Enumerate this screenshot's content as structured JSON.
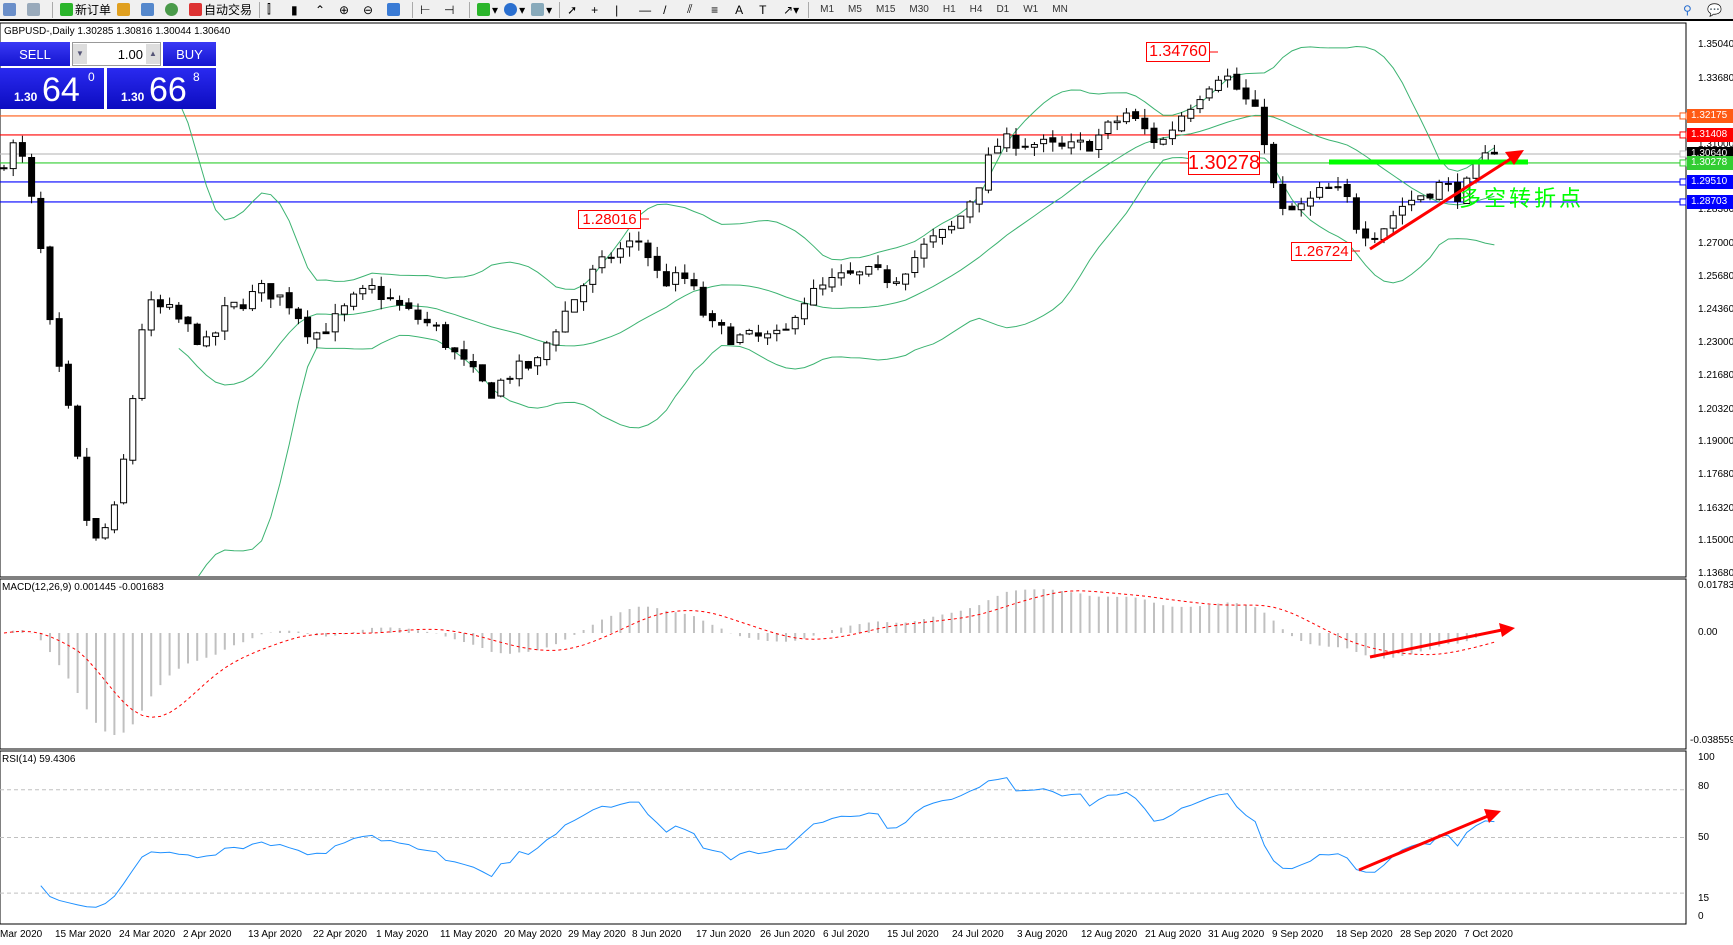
{
  "toolbar": {
    "new_order": "新订单",
    "auto_trading": "自动交易",
    "timeframes": [
      "M1",
      "M5",
      "M15",
      "M30",
      "H1",
      "H4",
      "D1",
      "W1",
      "MN"
    ]
  },
  "chart": {
    "title": "GBPUSD-,Daily  1.30285 1.30816 1.30044 1.30640"
  },
  "trade_panel": {
    "sell": "SELL",
    "buy": "BUY",
    "lots": "1.00",
    "sell_prefix": "1.30",
    "sell_big": "64",
    "sell_sup": "0",
    "buy_prefix": "1.30",
    "buy_big": "66",
    "buy_sup": "8"
  },
  "price_axis": [
    "1.35040",
    "1.33680",
    "1.31000",
    "1.28360",
    "1.27000",
    "1.25680",
    "1.24360",
    "1.23000",
    "1.21680",
    "1.20320",
    "1.19000",
    "1.17680",
    "1.16320",
    "1.15000",
    "1.13680"
  ],
  "hlines": [
    {
      "price": 1.32175,
      "label": "1.32175",
      "color": "#ff5a14"
    },
    {
      "price": 1.31408,
      "label": "1.31408",
      "color": "#ff0000"
    },
    {
      "price": 1.3064,
      "label": "1.30640",
      "color": "#000000",
      "line": "#c0c0c0"
    },
    {
      "price": 1.30278,
      "label": "1.30278",
      "color": "#32cd32"
    },
    {
      "price": 1.2951,
      "label": "1.29510",
      "color": "#0000ff"
    },
    {
      "price": 1.28703,
      "label": "1.28703",
      "color": "#0000ff"
    }
  ],
  "annotations": {
    "high": "1.34760",
    "mid_high": "1.28016",
    "resistance": "1.30278",
    "low": "1.26724",
    "turning_point": "多空转折点"
  },
  "macd": {
    "label": "MACD(12,26,9) 0.001445 -0.001683",
    "axis": [
      "0.017833",
      "0.00",
      "-0.038559"
    ]
  },
  "rsi": {
    "label": "RSI(14) 59.4306",
    "axis": [
      "100",
      "80",
      "50",
      "15",
      "0"
    ]
  },
  "time_axis": [
    "Mar 2020",
    "15 Mar 2020",
    "24 Mar 2020",
    "2 Apr 2020",
    "13 Apr 2020",
    "22 Apr 2020",
    "1 May 2020",
    "11 May 2020",
    "20 May 2020",
    "29 May 2020",
    "8 Jun 2020",
    "17 Jun 2020",
    "26 Jun 2020",
    "6 Jul 2020",
    "15 Jul 2020",
    "24 Jul 2020",
    "3 Aug 2020",
    "12 Aug 2020",
    "21 Aug 2020",
    "31 Aug 2020",
    "9 Sep 2020",
    "18 Sep 2020",
    "28 Sep 2020",
    "7 Oct 2020"
  ],
  "chart_data": {
    "type": "candlestick",
    "symbol": "GBPUSD",
    "timeframe": "Daily",
    "ylim": [
      1.1368,
      1.3504
    ],
    "approx_close_path": [
      [
        "2020-03-07",
        1.3
      ],
      [
        "2020-03-10",
        1.312
      ],
      [
        "2020-03-13",
        1.275
      ],
      [
        "2020-03-15",
        1.23
      ],
      [
        "2020-03-18",
        1.195
      ],
      [
        "2020-03-20",
        1.16
      ],
      [
        "2020-03-21",
        1.148
      ],
      [
        "2020-03-24",
        1.16
      ],
      [
        "2020-03-26",
        1.19
      ],
      [
        "2020-03-28",
        1.235
      ],
      [
        "2020-03-29",
        1.245
      ],
      [
        "2020-04-01",
        1.243
      ],
      [
        "2020-04-07",
        1.228
      ],
      [
        "2020-04-09",
        1.242
      ],
      [
        "2020-04-15",
        1.252
      ],
      [
        "2020-04-19",
        1.246
      ],
      [
        "2020-04-22",
        1.233
      ],
      [
        "2020-04-25",
        1.238
      ],
      [
        "2020-04-28",
        1.247
      ],
      [
        "2020-05-01",
        1.252
      ],
      [
        "2020-05-05",
        1.244
      ],
      [
        "2020-05-10",
        1.236
      ],
      [
        "2020-05-13",
        1.225
      ],
      [
        "2020-05-18",
        1.21
      ],
      [
        "2020-05-21",
        1.218
      ],
      [
        "2020-05-25",
        1.222
      ],
      [
        "2020-05-27",
        1.234
      ],
      [
        "2020-06-01",
        1.255
      ],
      [
        "2020-06-05",
        1.266
      ],
      [
        "2020-06-09",
        1.272
      ],
      [
        "2020-06-12",
        1.255
      ],
      [
        "2020-06-16",
        1.256
      ],
      [
        "2020-06-19",
        1.237
      ],
      [
        "2020-06-23",
        1.232
      ],
      [
        "2020-06-30",
        1.232
      ],
      [
        "2020-07-02",
        1.246
      ],
      [
        "2020-07-08",
        1.256
      ],
      [
        "2020-07-13",
        1.258
      ],
      [
        "2020-07-16",
        1.256
      ],
      [
        "2020-07-21",
        1.27
      ],
      [
        "2020-07-25",
        1.277
      ],
      [
        "2020-07-28",
        1.292
      ],
      [
        "2020-07-31",
        1.31
      ],
      [
        "2020-08-03",
        1.312
      ],
      [
        "2020-08-10",
        1.308
      ],
      [
        "2020-08-14",
        1.311
      ],
      [
        "2020-08-19",
        1.323
      ],
      [
        "2020-08-24",
        1.31
      ],
      [
        "2020-08-27",
        1.322
      ],
      [
        "2020-08-31",
        1.335
      ],
      [
        "2020-09-02",
        1.34
      ],
      [
        "2020-09-05",
        1.33
      ],
      [
        "2020-09-08",
        1.318
      ],
      [
        "2020-09-09",
        1.298
      ],
      [
        "2020-09-11",
        1.282
      ],
      [
        "2020-09-14",
        1.285
      ],
      [
        "2020-09-17",
        1.292
      ],
      [
        "2020-09-20",
        1.29
      ],
      [
        "2020-09-22",
        1.276
      ],
      [
        "2020-09-25",
        1.275
      ],
      [
        "2020-09-28",
        1.285
      ],
      [
        "2020-10-01",
        1.29
      ],
      [
        "2020-10-04",
        1.294
      ],
      [
        "2020-10-07",
        1.29
      ],
      [
        "2020-10-11",
        1.3064
      ]
    ],
    "indicators": [
      "Bollinger Bands(20,2)",
      "MACD(12,26,9)",
      "RSI(14)"
    ],
    "rsi_levels": [
      80,
      50,
      15
    ]
  }
}
